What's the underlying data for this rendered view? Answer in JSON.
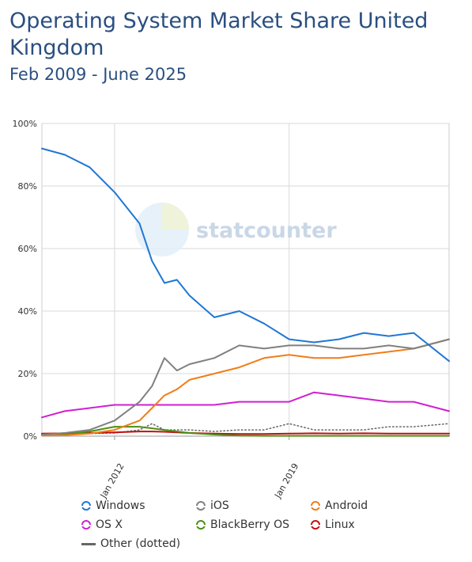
{
  "title": "Operating System Market Share United Kingdom",
  "subtitle": "Feb 2009 - June 2025",
  "watermark": "statcounter",
  "chart_data": {
    "type": "line",
    "x": [
      "2009-02",
      "2010-01",
      "2011-01",
      "2012-01",
      "2013-01",
      "2013-07",
      "2014-01",
      "2014-07",
      "2015-01",
      "2016-01",
      "2017-01",
      "2018-01",
      "2019-01",
      "2020-01",
      "2021-01",
      "2022-01",
      "2023-01",
      "2024-01",
      "2025-06"
    ],
    "x_ticks": [
      "Jan 2012",
      "Jan 2019"
    ],
    "x_tick_positions": [
      "2012-01",
      "2019-01"
    ],
    "ylim": [
      0,
      100
    ],
    "y_ticks": [
      "0%",
      "20%",
      "40%",
      "60%",
      "80%",
      "100%"
    ],
    "y_tick_values": [
      0,
      20,
      40,
      60,
      80,
      100
    ],
    "grid": true,
    "series": [
      {
        "name": "Windows",
        "color": "#1f77d4",
        "style": "solid",
        "values": [
          92,
          90,
          86,
          78,
          68,
          56,
          49,
          50,
          45,
          38,
          40,
          36,
          31,
          30,
          31,
          33,
          32,
          33,
          24
        ]
      },
      {
        "name": "iOS",
        "color": "#808080",
        "style": "solid",
        "values": [
          0.5,
          1,
          2,
          5,
          11,
          16,
          25,
          21,
          23,
          25,
          29,
          28,
          29,
          29,
          28,
          28,
          29,
          28,
          31
        ]
      },
      {
        "name": "Android",
        "color": "#f07d18",
        "style": "solid",
        "values": [
          0.2,
          0.3,
          0.8,
          2,
          5,
          9,
          13,
          15,
          18,
          20,
          22,
          25,
          26,
          25,
          25,
          26,
          27,
          28,
          31
        ]
      },
      {
        "name": "OS X",
        "color": "#d020d0",
        "style": "solid",
        "values": [
          6,
          8,
          9,
          10,
          10,
          10,
          10,
          10,
          10,
          10,
          11,
          11,
          11,
          14,
          13,
          12,
          11,
          11,
          8
        ]
      },
      {
        "name": "BlackBerry OS",
        "color": "#4a8f14",
        "style": "solid",
        "values": [
          0.3,
          0.5,
          1.5,
          3,
          3,
          2.5,
          2,
          1.5,
          1,
          0.5,
          0.2,
          0.1,
          0.1,
          0.1,
          0.1,
          0.1,
          0.1,
          0.1,
          0.1
        ]
      },
      {
        "name": "Linux",
        "color": "#c01010",
        "style": "solid",
        "values": [
          0.8,
          0.9,
          1,
          1.2,
          1.5,
          1.5,
          1.4,
          1.2,
          1,
          0.8,
          0.7,
          0.7,
          0.8,
          0.9,
          0.8,
          0.9,
          0.8,
          0.8,
          0.8
        ]
      },
      {
        "name": "Other (dotted)",
        "color": "#666666",
        "style": "dotted",
        "values": [
          0.5,
          0.5,
          0.8,
          1,
          2,
          4,
          2,
          2,
          2,
          1.5,
          2,
          2,
          4,
          2,
          2,
          2,
          3,
          3,
          4
        ]
      }
    ]
  },
  "legend": [
    {
      "label": "Windows",
      "color": "#1f77d4",
      "marker": "circle"
    },
    {
      "label": "iOS",
      "color": "#808080",
      "marker": "circle"
    },
    {
      "label": "Android",
      "color": "#f07d18",
      "marker": "circle"
    },
    {
      "label": "OS X",
      "color": "#d020d0",
      "marker": "circle"
    },
    {
      "label": "BlackBerry OS",
      "color": "#4a8f14",
      "marker": "circle"
    },
    {
      "label": "Linux",
      "color": "#c01010",
      "marker": "circle"
    },
    {
      "label": "Other (dotted)",
      "color": "#666666",
      "marker": "line"
    }
  ]
}
